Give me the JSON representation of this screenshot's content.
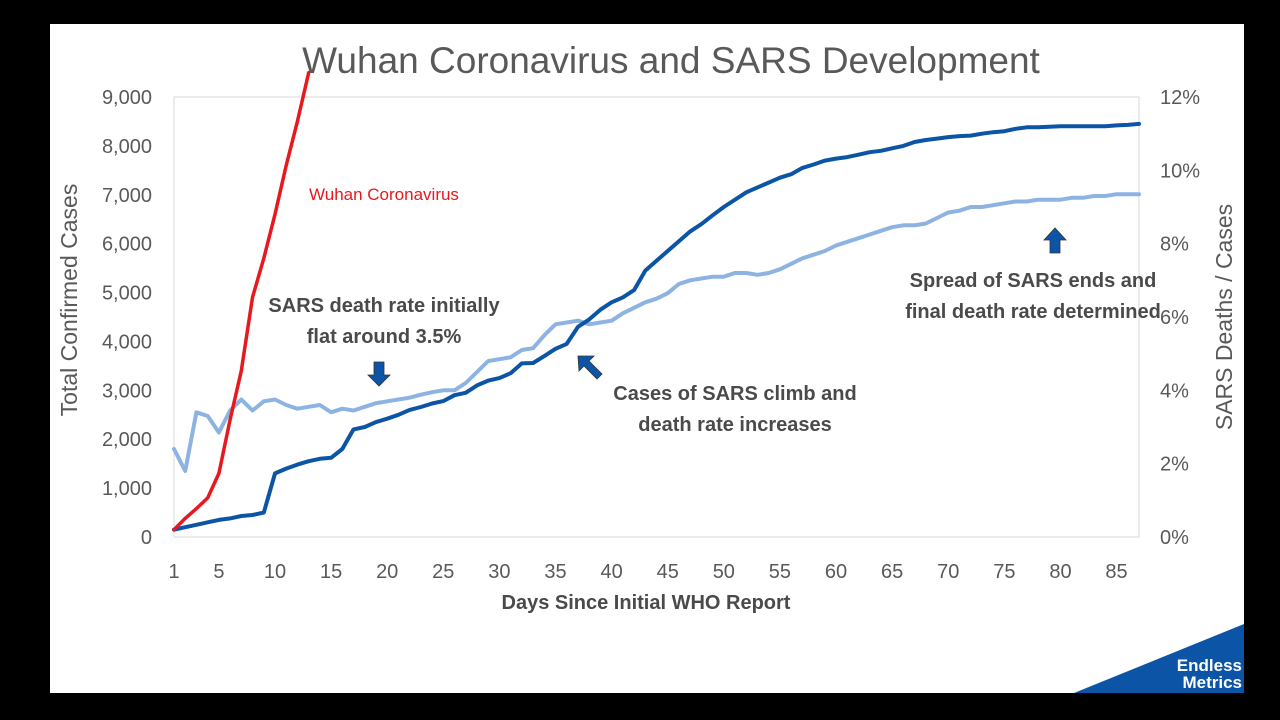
{
  "chart_data": {
    "type": "line",
    "title": "Wuhan Coronavirus and SARS Development",
    "xlabel": "Days Since Initial WHO Report",
    "ylabel": "Total Confirmed Cases",
    "y2label": "SARS Deaths / Cases",
    "xlim": [
      1,
      87
    ],
    "ylim": [
      0,
      9000
    ],
    "y2lim": [
      0,
      12
    ],
    "x_ticks": [
      "1",
      "5",
      "10",
      "15",
      "20",
      "25",
      "30",
      "35",
      "40",
      "45",
      "50",
      "55",
      "60",
      "65",
      "70",
      "75",
      "80",
      "85"
    ],
    "y_ticks": [
      "0",
      "1,000",
      "2,000",
      "3,000",
      "4,000",
      "5,000",
      "6,000",
      "7,000",
      "8,000",
      "9,000"
    ],
    "y2_ticks": [
      "0%",
      "2%",
      "4%",
      "6%",
      "8%",
      "10%",
      "12%"
    ],
    "series": [
      {
        "name": "SARS Total Confirmed Cases",
        "axis": "left",
        "color": "#0c54a6",
        "x": [
          1,
          2,
          3,
          4,
          5,
          6,
          7,
          8,
          9,
          10,
          11,
          12,
          13,
          14,
          15,
          16,
          17,
          18,
          19,
          20,
          21,
          22,
          23,
          24,
          25,
          26,
          27,
          28,
          29,
          30,
          31,
          32,
          33,
          34,
          35,
          36,
          37,
          38,
          39,
          40,
          41,
          42,
          43,
          44,
          45,
          46,
          47,
          48,
          49,
          50,
          51,
          52,
          53,
          54,
          55,
          56,
          57,
          58,
          59,
          60,
          61,
          62,
          63,
          64,
          65,
          66,
          67,
          68,
          69,
          70,
          71,
          72,
          73,
          74,
          75,
          76,
          77,
          78,
          79,
          80,
          81,
          82,
          83,
          84,
          85,
          86,
          87
        ],
        "values": [
          150,
          200,
          250,
          300,
          350,
          380,
          430,
          450,
          500,
          1300,
          1400,
          1480,
          1550,
          1600,
          1620,
          1800,
          2200,
          2250,
          2350,
          2420,
          2500,
          2600,
          2660,
          2730,
          2780,
          2900,
          2950,
          3100,
          3200,
          3250,
          3350,
          3550,
          3560,
          3700,
          3850,
          3950,
          4300,
          4450,
          4650,
          4800,
          4900,
          5050,
          5450,
          5650,
          5850,
          6050,
          6250,
          6400,
          6580,
          6750,
          6900,
          7050,
          7150,
          7250,
          7350,
          7420,
          7550,
          7620,
          7700,
          7740,
          7770,
          7820,
          7870,
          7900,
          7950,
          8000,
          8080,
          8120,
          8150,
          8180,
          8200,
          8210,
          8250,
          8280,
          8300,
          8350,
          8380,
          8380,
          8390,
          8400,
          8400,
          8400,
          8400,
          8400,
          8420,
          8430,
          8450
        ]
      },
      {
        "name": "SARS Deaths / Cases",
        "axis": "right",
        "color": "#8db3e2",
        "x": [
          1,
          2,
          3,
          4,
          5,
          6,
          7,
          8,
          9,
          10,
          11,
          12,
          13,
          14,
          15,
          16,
          17,
          18,
          19,
          20,
          21,
          22,
          23,
          24,
          25,
          26,
          27,
          28,
          29,
          30,
          31,
          32,
          33,
          34,
          35,
          36,
          37,
          38,
          39,
          40,
          41,
          42,
          43,
          44,
          45,
          46,
          47,
          48,
          49,
          50,
          51,
          52,
          53,
          54,
          55,
          56,
          57,
          58,
          59,
          60,
          61,
          62,
          63,
          64,
          65,
          66,
          67,
          68,
          69,
          70,
          71,
          72,
          73,
          74,
          75,
          76,
          77,
          78,
          79,
          80,
          81,
          82,
          83,
          84,
          85,
          86,
          87
        ],
        "values": [
          2.4,
          1.8,
          3.4,
          3.3,
          2.85,
          3.45,
          3.75,
          3.45,
          3.7,
          3.75,
          3.6,
          3.5,
          3.55,
          3.6,
          3.4,
          3.5,
          3.45,
          3.55,
          3.65,
          3.7,
          3.75,
          3.8,
          3.88,
          3.95,
          4.0,
          4.0,
          4.2,
          4.5,
          4.8,
          4.85,
          4.9,
          5.1,
          5.15,
          5.5,
          5.8,
          5.85,
          5.9,
          5.8,
          5.85,
          5.9,
          6.1,
          6.25,
          6.4,
          6.5,
          6.65,
          6.9,
          7.0,
          7.05,
          7.1,
          7.1,
          7.2,
          7.2,
          7.15,
          7.2,
          7.3,
          7.45,
          7.6,
          7.7,
          7.8,
          7.95,
          8.05,
          8.15,
          8.25,
          8.35,
          8.45,
          8.5,
          8.5,
          8.55,
          8.7,
          8.85,
          8.9,
          9.0,
          9.0,
          9.05,
          9.1,
          9.15,
          9.15,
          9.2,
          9.2,
          9.2,
          9.25,
          9.25,
          9.3,
          9.3,
          9.35,
          9.35,
          9.35
        ]
      },
      {
        "name": "Wuhan Coronavirus",
        "axis": "left",
        "color": "#e8181f",
        "x": [
          1,
          2,
          3,
          4,
          5,
          6,
          7,
          8,
          9,
          10,
          11,
          12,
          13
        ],
        "values": [
          150,
          380,
          580,
          800,
          1300,
          2400,
          3400,
          4900,
          5700,
          6600,
          7600,
          8500,
          9500
        ]
      }
    ],
    "annotations": {
      "wuhan_label": "Wuhan Coronavirus",
      "note1_line1": "SARS death rate initially",
      "note1_line2": "flat around 3.5%",
      "note2_line1": "Cases of SARS climb and",
      "note2_line2": "death rate increases",
      "note3_line1": "Spread of SARS ends and",
      "note3_line2": "final death rate determined"
    },
    "arrow_color": "#0c54a6"
  },
  "logo": {
    "line1": "Endless",
    "line2": "Metrics",
    "color": "#0c54a6"
  }
}
